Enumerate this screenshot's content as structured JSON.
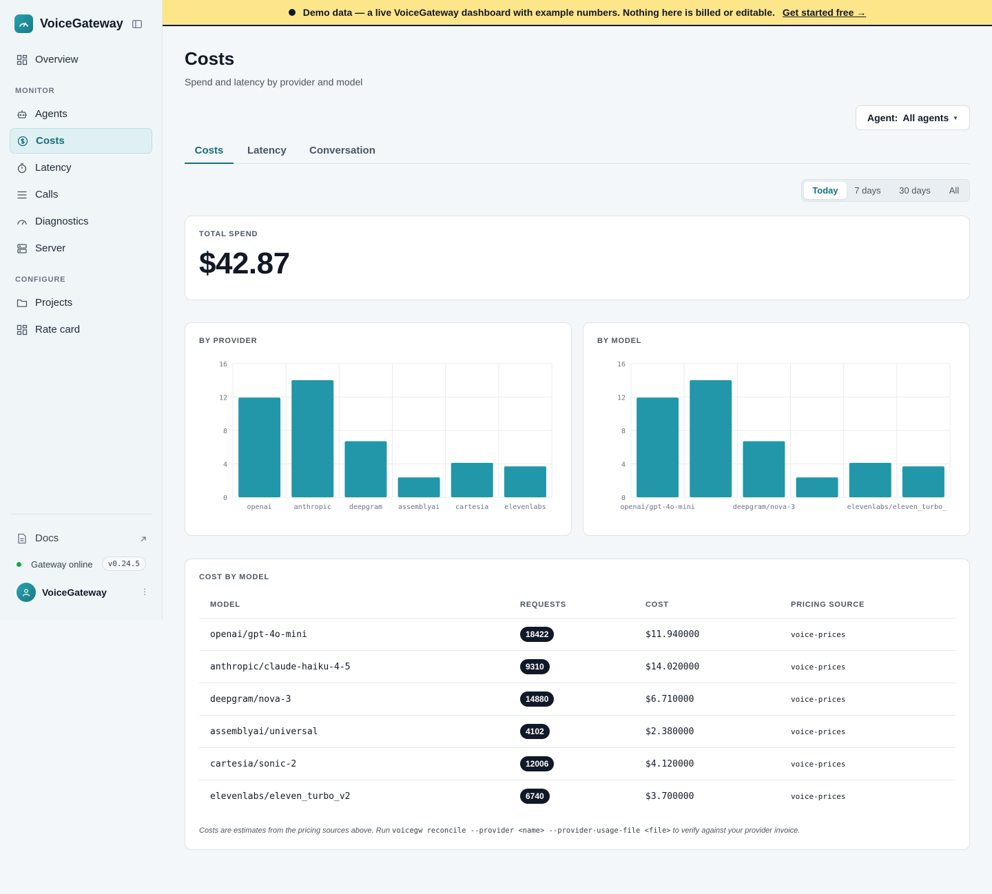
{
  "app": {
    "name": "VoiceGateway"
  },
  "banner": {
    "text": "Demo data — a live VoiceGateway dashboard with example numbers. Nothing here is billed or editable.",
    "link": "Get started free →"
  },
  "sidebar": {
    "overview": "Overview",
    "monitor_label": "MONITOR",
    "monitor_items": [
      "Agents",
      "Costs",
      "Latency",
      "Calls",
      "Diagnostics",
      "Server"
    ],
    "configure_label": "CONFIGURE",
    "configure_items": [
      "Projects",
      "Rate card"
    ],
    "active_item": "Costs",
    "docs": "Docs",
    "status": "Gateway online",
    "version": "v0.24.5",
    "user": "VoiceGateway"
  },
  "page": {
    "title": "Costs",
    "subtitle": "Spend and latency by provider and model"
  },
  "agent_filter": {
    "label": "Agent:",
    "value": "All agents"
  },
  "tabs": [
    "Costs",
    "Latency",
    "Conversation"
  ],
  "active_tab": "Costs",
  "ranges": [
    "Today",
    "7 days",
    "30 days",
    "All"
  ],
  "active_range": "Today",
  "total_spend": {
    "label": "TOTAL SPEND",
    "value": "$42.87"
  },
  "by_provider_label": "BY PROVIDER",
  "by_model_label": "BY MODEL",
  "chart_data": [
    {
      "type": "bar",
      "title": "BY PROVIDER",
      "categories": [
        "openai",
        "anthropic",
        "deepgram",
        "assemblyai",
        "cartesia",
        "elevenlabs"
      ],
      "values": [
        11.94,
        14.02,
        6.71,
        2.38,
        4.12,
        3.7
      ],
      "yticks": [
        0,
        4,
        8,
        12,
        16
      ],
      "ylim": [
        0,
        16
      ],
      "grid": true,
      "color": "#2197a9"
    },
    {
      "type": "bar",
      "title": "BY MODEL",
      "categories": [
        "openai/gpt-4o-mini",
        "anthropic/claude-haiku-4-5",
        "deepgram/nova-3",
        "assemblyai/universal",
        "cartesia/sonic-2",
        "elevenlabs/eleven_turbo_v2"
      ],
      "visible_tick_labels": [
        "openai/gpt-4o-mini",
        "",
        "deepgram/nova-3",
        "",
        "elevenlabs/eleven_turbo_"
      ],
      "values": [
        11.94,
        14.02,
        6.71,
        2.38,
        4.12,
        3.7
      ],
      "yticks": [
        0,
        4,
        8,
        12,
        16
      ],
      "ylim": [
        0,
        16
      ],
      "grid": true,
      "color": "#2197a9"
    }
  ],
  "cost_table": {
    "label": "COST BY MODEL",
    "headers": [
      "MODEL",
      "REQUESTS",
      "COST",
      "PRICING SOURCE"
    ],
    "rows": [
      {
        "model": "openai/gpt-4o-mini",
        "requests": "18422",
        "cost": "$11.940000",
        "source": "voice-prices"
      },
      {
        "model": "anthropic/claude-haiku-4-5",
        "requests": "9310",
        "cost": "$14.020000",
        "source": "voice-prices"
      },
      {
        "model": "deepgram/nova-3",
        "requests": "14880",
        "cost": "$6.710000",
        "source": "voice-prices"
      },
      {
        "model": "assemblyai/universal",
        "requests": "4102",
        "cost": "$2.380000",
        "source": "voice-prices"
      },
      {
        "model": "cartesia/sonic-2",
        "requests": "12006",
        "cost": "$4.120000",
        "source": "voice-prices"
      },
      {
        "model": "elevenlabs/eleven_turbo_v2",
        "requests": "6740",
        "cost": "$3.700000",
        "source": "voice-prices"
      }
    ],
    "footnote_pre": "Costs are estimates from the pricing sources above. Run",
    "footnote_cmd": "voicegw reconcile --provider <name> --provider-usage-file <file>",
    "footnote_post": "to verify against your provider invoice."
  }
}
